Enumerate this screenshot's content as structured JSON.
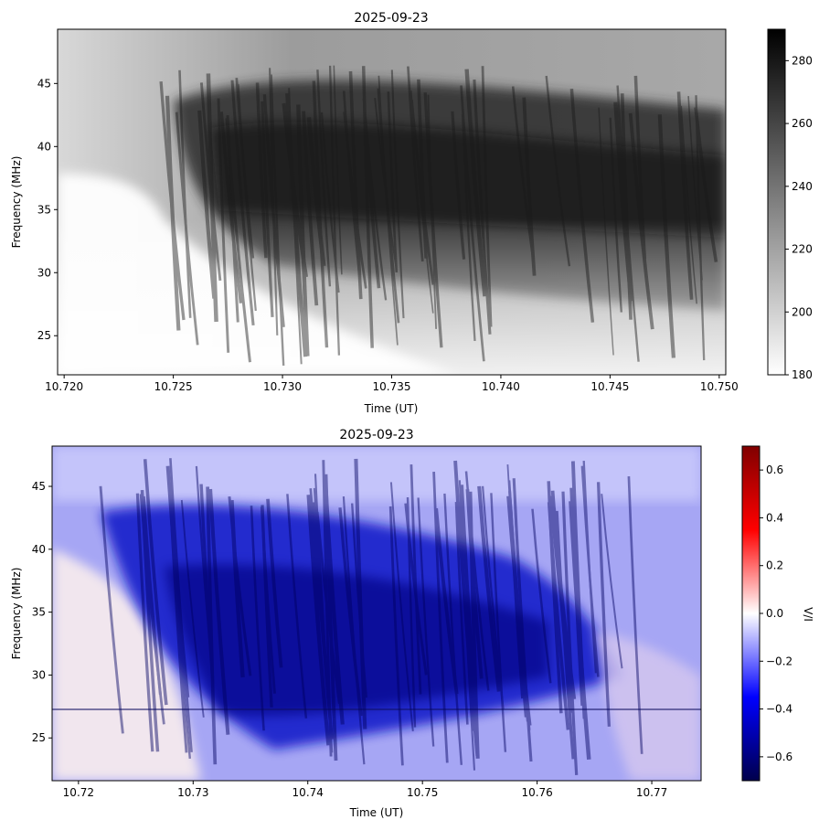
{
  "chart_data": [
    {
      "type": "heatmap",
      "title": "2025-09-23",
      "xlabel": "Time (UT)",
      "ylabel": "Frequency (MHz)",
      "xlim": [
        10.7197,
        10.7503
      ],
      "ylim": [
        21.9,
        49.3
      ],
      "xticks": [
        "10.720",
        "10.725",
        "10.730",
        "10.735",
        "10.740",
        "10.745",
        "10.750"
      ],
      "xtick_values": [
        10.72,
        10.725,
        10.73,
        10.735,
        10.74,
        10.745,
        10.75
      ],
      "yticks": [
        "25",
        "30",
        "35",
        "40",
        "45"
      ],
      "ytick_values": [
        25,
        30,
        35,
        40,
        45
      ],
      "colorbar": {
        "label": "",
        "colormap": "gray_r",
        "range": [
          180,
          290
        ],
        "ticks": [
          "180",
          "200",
          "220",
          "240",
          "260",
          "280"
        ],
        "tick_values": [
          180,
          200,
          220,
          240,
          260,
          280
        ]
      }
    },
    {
      "type": "heatmap",
      "title": "2025-09-23",
      "xlabel": "Time (UT)",
      "ylabel": "Frequency (MHz)",
      "xlim": [
        10.7177,
        10.7743
      ],
      "ylim": [
        21.6,
        48.2
      ],
      "xticks": [
        "10.72",
        "10.73",
        "10.74",
        "10.75",
        "10.76",
        "10.77"
      ],
      "xtick_values": [
        10.72,
        10.73,
        10.74,
        10.75,
        10.76,
        10.77
      ],
      "yticks": [
        "25",
        "30",
        "35",
        "40",
        "45"
      ],
      "ytick_values": [
        25,
        30,
        35,
        40,
        45
      ],
      "colorbar": {
        "label": "V/I",
        "colormap": "seismic",
        "range": [
          -0.7,
          0.7
        ],
        "ticks": [
          "−0.6",
          "−0.4",
          "−0.2",
          "0.0",
          "0.2",
          "0.4",
          "0.6"
        ],
        "tick_values": [
          -0.6,
          -0.4,
          -0.2,
          0.0,
          0.2,
          0.4,
          0.6
        ]
      }
    }
  ]
}
